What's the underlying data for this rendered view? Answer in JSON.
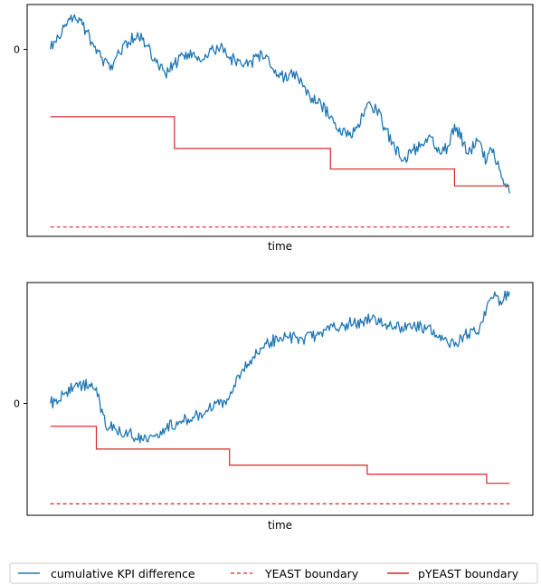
{
  "chart_data": [
    {
      "type": "line",
      "title": "",
      "xlabel": "time",
      "ylabel": "",
      "yticks": [
        {
          "value": 0,
          "label": "0"
        }
      ],
      "ylim": [
        -10,
        2.4
      ],
      "grid": false,
      "series": [
        {
          "name": "cumulative KPI difference",
          "color": "#1f77b4",
          "style": "solid",
          "x": [
            0,
            0.03,
            0.05,
            0.07,
            0.09,
            0.11,
            0.13,
            0.15,
            0.17,
            0.19,
            0.21,
            0.23,
            0.25,
            0.27,
            0.29,
            0.31,
            0.33,
            0.35,
            0.37,
            0.39,
            0.41,
            0.43,
            0.45,
            0.47,
            0.49,
            0.51,
            0.53,
            0.55,
            0.57,
            0.59,
            0.61,
            0.63,
            0.65,
            0.67,
            0.69,
            0.71,
            0.73,
            0.75,
            0.77,
            0.79,
            0.81,
            0.83,
            0.85,
            0.87,
            0.88,
            0.9,
            0.91,
            0.93,
            0.95,
            0.96,
            0.98,
            1.0
          ],
          "y": [
            0,
            1.2,
            1.7,
            1.3,
            0.4,
            -0.4,
            -1.1,
            -0.2,
            0.4,
            0.9,
            0.2,
            -0.7,
            -1.3,
            -0.8,
            -0.3,
            -0.2,
            -0.6,
            0,
            0.1,
            -0.5,
            -0.6,
            -0.9,
            -0.4,
            -0.3,
            -1.1,
            -1.5,
            -1.2,
            -2.0,
            -2.6,
            -3.0,
            -3.6,
            -4.2,
            -4.6,
            -4.0,
            -2.9,
            -3.2,
            -4.3,
            -5.3,
            -5.9,
            -5.4,
            -5.1,
            -4.7,
            -5.6,
            -5.1,
            -4.0,
            -5.0,
            -5.6,
            -4.9,
            -6.0,
            -5.3,
            -6.5,
            -7.7
          ]
        },
        {
          "name": "YEAST boundary",
          "color": "#d62728",
          "style": "dashed",
          "x": [
            0,
            1
          ],
          "y": [
            -9.5,
            -9.5
          ]
        },
        {
          "name": "pYEAST boundary",
          "color": "#d62728",
          "style": "step",
          "x": [
            0,
            0.27,
            0.27,
            0.61,
            0.61,
            0.88,
            0.88,
            1.0
          ],
          "y": [
            -3.6,
            -3.6,
            -5.3,
            -5.3,
            -6.4,
            -6.4,
            -7.3,
            -7.3
          ]
        }
      ]
    },
    {
      "type": "line",
      "title": "",
      "xlabel": "time",
      "ylabel": "",
      "yticks": [
        {
          "value": 0,
          "label": "0"
        }
      ],
      "ylim": [
        -4.9,
        5.3
      ],
      "grid": false,
      "series": [
        {
          "name": "cumulative KPI difference",
          "color": "#1f77b4",
          "style": "solid",
          "x": [
            0,
            0.03,
            0.05,
            0.07,
            0.09,
            0.1,
            0.12,
            0.14,
            0.17,
            0.2,
            0.22,
            0.25,
            0.28,
            0.31,
            0.34,
            0.36,
            0.38,
            0.4,
            0.42,
            0.44,
            0.46,
            0.48,
            0.5,
            0.52,
            0.55,
            0.58,
            0.6,
            0.62,
            0.65,
            0.68,
            0.7,
            0.73,
            0.76,
            0.79,
            0.82,
            0.84,
            0.86,
            0.88,
            0.9,
            0.93,
            0.95,
            0.97,
            0.98,
            1.0
          ],
          "y": [
            0,
            0.4,
            0.7,
            0.8,
            0.9,
            0.7,
            -1.0,
            -1.1,
            -1.3,
            -1.6,
            -1.4,
            -1.1,
            -0.8,
            -0.6,
            -0.3,
            0,
            0.1,
            0.8,
            1.5,
            2.0,
            2.4,
            2.7,
            2.9,
            2.9,
            2.8,
            3.0,
            3.2,
            3.3,
            3.5,
            3.6,
            3.7,
            3.5,
            3.3,
            3.4,
            3.3,
            3.0,
            2.9,
            2.5,
            3.0,
            3.1,
            4.2,
            4.7,
            4.5,
            4.9
          ]
        },
        {
          "name": "YEAST boundary",
          "color": "#d62728",
          "style": "dashed",
          "x": [
            0,
            1
          ],
          "y": [
            -4.4,
            -4.4
          ]
        },
        {
          "name": "pYEAST boundary",
          "color": "#d62728",
          "style": "step",
          "x": [
            0,
            0.1,
            0.1,
            0.39,
            0.39,
            0.69,
            0.69,
            0.95,
            0.95,
            1.0
          ],
          "y": [
            -1.0,
            -1.0,
            -2.0,
            -2.0,
            -2.7,
            -2.7,
            -3.1,
            -3.1,
            -3.5,
            -3.5
          ]
        }
      ]
    }
  ],
  "legend": {
    "placement": "bottom",
    "entries": [
      {
        "label": "cumulative KPI difference",
        "color": "#1f77b4",
        "style": "solid"
      },
      {
        "label": "YEAST boundary",
        "color": "#d62728",
        "style": "dashed"
      },
      {
        "label": "pYEAST boundary",
        "color": "#d62728",
        "style": "solid"
      }
    ]
  }
}
